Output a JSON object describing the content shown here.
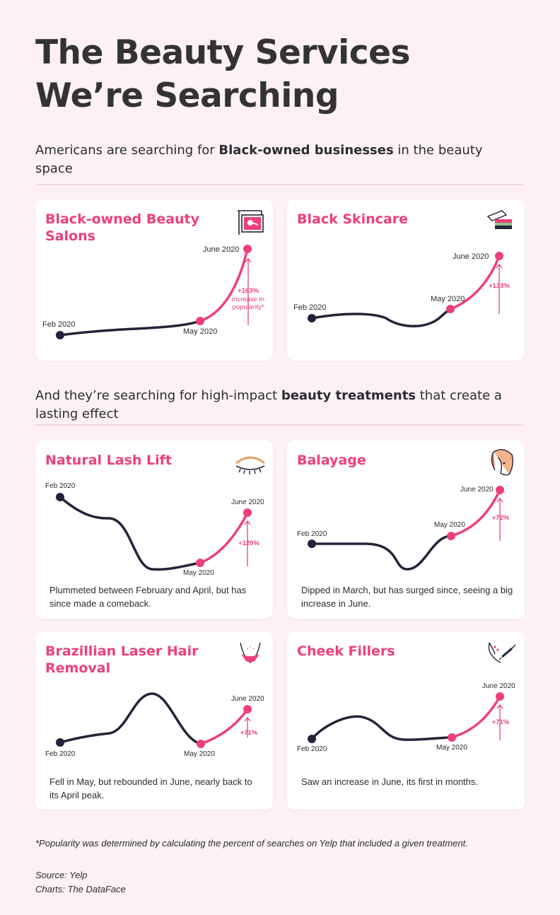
{
  "title_lines": [
    "The Beauty Services",
    "We’re Searching"
  ],
  "section1": {
    "pre": "Americans are searching for ",
    "bold": "Black-owned businesses",
    "post": " in the beauty space"
  },
  "section2": {
    "pre": "And they’re searching for high-impact ",
    "bold": "beauty treatments",
    "post": " that create a lasting effect"
  },
  "footnote": "*Popularity was determined by calculating the percent of searches on Yelp that included a given treatment.",
  "source": "Source: Yelp",
  "credits": "Charts: The DataFace",
  "colors": {
    "accent": "#ee3f79",
    "dark": "#25233a",
    "background": "#fdf1f4",
    "card": "#ffffff"
  },
  "chart_data": [
    {
      "type": "line",
      "title": "Black-owned Beauty Salons",
      "icon": "salon-sign-icon",
      "x": [
        "Feb 2020",
        "May 2020",
        "June 2020"
      ],
      "change_label": "+163%",
      "annotation": [
        "increase in",
        "popularity*"
      ],
      "description": ""
    },
    {
      "type": "line",
      "title": "Black Skincare",
      "icon": "skincare-jar-icon",
      "x": [
        "Feb 2020",
        "May 2020",
        "June 2020"
      ],
      "change_label": "+133%",
      "annotation": [],
      "description": ""
    },
    {
      "type": "line",
      "title": "Natural Lash Lift",
      "icon": "eyelash-icon",
      "x": [
        "Feb 2020",
        "May 2020",
        "June 2020"
      ],
      "change_label": "+120%",
      "annotation": [],
      "description": "Plummeted between February and April, but has since made a comeback."
    },
    {
      "type": "line",
      "title": "Balayage",
      "icon": "hair-color-icon",
      "x": [
        "Feb 2020",
        "May 2020",
        "June 2020"
      ],
      "change_label": "+72%",
      "annotation": [],
      "description": "Dipped in March, but has surged since, seeing a big increase in June."
    },
    {
      "type": "line",
      "title": "Brazillian Laser Hair Removal",
      "icon": "bikini-icon",
      "x": [
        "Feb 2020",
        "May 2020",
        "June 2020"
      ],
      "change_label": "+71%",
      "annotation": [],
      "description": "Fell in May, but rebounded in June, nearly back to its April peak."
    },
    {
      "type": "line",
      "title": "Cheek Fillers",
      "icon": "face-injection-icon",
      "x": [
        "Feb 2020",
        "May 2020",
        "June 2020"
      ],
      "change_label": "+71%",
      "annotation": [],
      "description": "Saw an increase in June, its first in months."
    }
  ]
}
